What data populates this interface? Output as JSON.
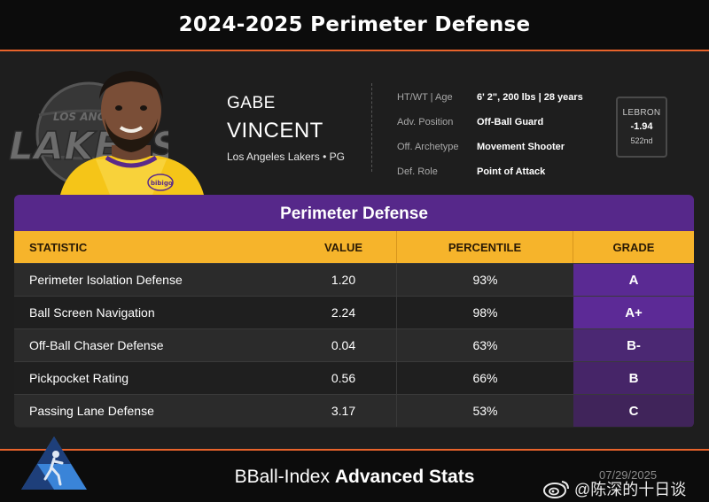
{
  "header": {
    "title": "2024-2025 Perimeter Defense"
  },
  "player": {
    "first_name": "GABE",
    "last_name": "VINCENT",
    "team_pos": "Los Angeles Lakers • PG",
    "team_logo_text": "LOS ANGELES LAKERS",
    "jersey_text": "bibigo"
  },
  "info": [
    {
      "label": "HT/WT | Age",
      "value": "6' 2\", 200 lbs | 28 years"
    },
    {
      "label": "Adv. Position",
      "value": "Off-Ball Guard"
    },
    {
      "label": "Off. Archetype",
      "value": "Movement Shooter"
    },
    {
      "label": "Def. Role",
      "value": "Point of Attack"
    }
  ],
  "lebron": {
    "label": "LEBRON",
    "value": "-1.94",
    "rank": "522nd"
  },
  "panel": {
    "title": "Perimeter Defense",
    "columns": [
      "STATISTIC",
      "VALUE",
      "PERCENTILE",
      "GRADE"
    ],
    "rows": [
      {
        "stat": "Perimeter Isolation Defense",
        "value": "1.20",
        "percentile": "93%",
        "grade": "A"
      },
      {
        "stat": "Ball Screen Navigation",
        "value": "2.24",
        "percentile": "98%",
        "grade": "A+"
      },
      {
        "stat": "Off-Ball Chaser Defense",
        "value": "0.04",
        "percentile": "63%",
        "grade": "B-"
      },
      {
        "stat": "Pickpocket Rating",
        "value": "0.56",
        "percentile": "66%",
        "grade": "B"
      },
      {
        "stat": "Passing Lane Defense",
        "value": "3.17",
        "percentile": "53%",
        "grade": "C"
      }
    ]
  },
  "grade_colors": [
    "#5a2a93",
    "#5c2a96",
    "#4b2873",
    "#462568",
    "#40245a"
  ],
  "footer": {
    "brand_light": "BBall-Index ",
    "brand_bold": "Advanced Stats"
  },
  "watermark": {
    "date": "07/29/2025",
    "handle": "@陈深的十日谈"
  },
  "colors": {
    "accent_orange": "#e8632b",
    "lakers_purple": "#56288a",
    "lakers_gold": "#f6b42b"
  }
}
